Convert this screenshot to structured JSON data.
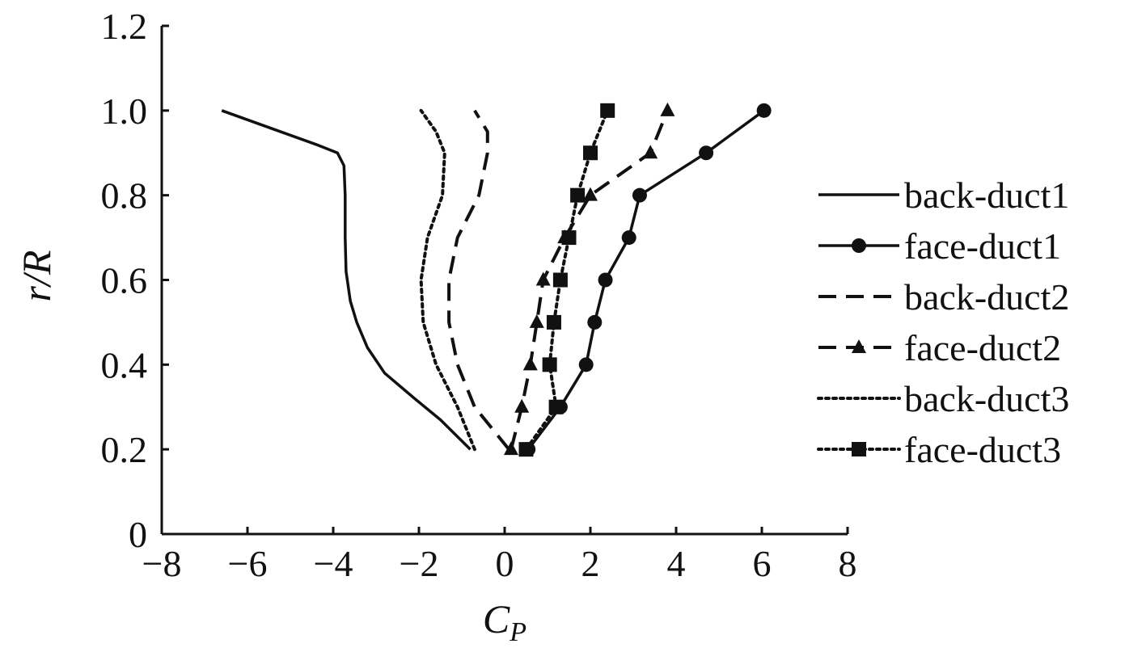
{
  "chart_data": {
    "type": "line",
    "title": "",
    "xlabel": "C",
    "xlabel_sub": "P",
    "ylabel": "r/R",
    "xlim": [
      -8,
      8
    ],
    "ylim": [
      0,
      1.2
    ],
    "xticks": [
      "−8",
      "−6",
      "−4",
      "−2",
      "0",
      "2",
      "4",
      "6",
      "8"
    ],
    "yticks": [
      "0",
      "0.2",
      "0.4",
      "0.6",
      "0.8",
      "1.0",
      "1.2"
    ],
    "grid": false,
    "legend_position": "right",
    "series": [
      {
        "name": "back-duct1",
        "style": "solid",
        "marker": "none",
        "points": [
          [
            -6.6,
            1.0
          ],
          [
            -5.5,
            0.96
          ],
          [
            -4.4,
            0.92
          ],
          [
            -3.9,
            0.9
          ],
          [
            -3.75,
            0.87
          ],
          [
            -3.72,
            0.8
          ],
          [
            -3.72,
            0.7
          ],
          [
            -3.7,
            0.62
          ],
          [
            -3.6,
            0.55
          ],
          [
            -3.45,
            0.5
          ],
          [
            -3.2,
            0.44
          ],
          [
            -2.8,
            0.38
          ],
          [
            -2.1,
            0.32
          ],
          [
            -1.5,
            0.27
          ],
          [
            -0.8,
            0.2
          ]
        ]
      },
      {
        "name": "face-duct1",
        "style": "solid",
        "marker": "circle",
        "points": [
          [
            0.55,
            0.2
          ],
          [
            1.3,
            0.3
          ],
          [
            1.9,
            0.4
          ],
          [
            2.1,
            0.5
          ],
          [
            2.35,
            0.6
          ],
          [
            2.9,
            0.7
          ],
          [
            3.15,
            0.8
          ],
          [
            4.7,
            0.9
          ],
          [
            6.05,
            1.0
          ]
        ]
      },
      {
        "name": "back-duct2",
        "style": "dashed",
        "marker": "none",
        "points": [
          [
            0.1,
            0.2
          ],
          [
            -0.7,
            0.3
          ],
          [
            -1.1,
            0.4
          ],
          [
            -1.3,
            0.5
          ],
          [
            -1.3,
            0.6
          ],
          [
            -1.1,
            0.7
          ],
          [
            -0.6,
            0.8
          ],
          [
            -0.4,
            0.9
          ],
          [
            -0.4,
            0.95
          ],
          [
            -0.7,
            1.0
          ]
        ]
      },
      {
        "name": "face-duct2",
        "style": "dashed",
        "marker": "triangle",
        "points": [
          [
            0.15,
            0.2
          ],
          [
            0.4,
            0.3
          ],
          [
            0.6,
            0.4
          ],
          [
            0.75,
            0.5
          ],
          [
            0.9,
            0.6
          ],
          [
            1.4,
            0.7
          ],
          [
            2.0,
            0.8
          ],
          [
            3.4,
            0.9
          ],
          [
            3.8,
            1.0
          ]
        ]
      },
      {
        "name": "back-duct3",
        "style": "dotted",
        "marker": "none",
        "points": [
          [
            -0.7,
            0.2
          ],
          [
            -1.1,
            0.3
          ],
          [
            -1.6,
            0.4
          ],
          [
            -1.9,
            0.5
          ],
          [
            -1.95,
            0.6
          ],
          [
            -1.8,
            0.7
          ],
          [
            -1.45,
            0.8
          ],
          [
            -1.4,
            0.9
          ],
          [
            -1.6,
            0.95
          ],
          [
            -1.95,
            1.0
          ]
        ]
      },
      {
        "name": "face-duct3",
        "style": "dotted",
        "marker": "square",
        "points": [
          [
            0.5,
            0.2
          ],
          [
            1.2,
            0.3
          ],
          [
            1.05,
            0.4
          ],
          [
            1.15,
            0.5
          ],
          [
            1.3,
            0.6
          ],
          [
            1.5,
            0.7
          ],
          [
            1.7,
            0.8
          ],
          [
            2.0,
            0.9
          ],
          [
            2.4,
            1.0
          ]
        ]
      }
    ]
  }
}
